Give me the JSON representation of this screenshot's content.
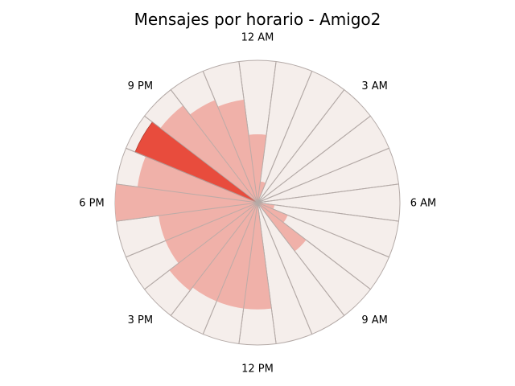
{
  "chart_data": {
    "type": "polar-bar",
    "title": "Mensajes por horario - Amigo2",
    "bins": [
      "12 AM",
      "1 AM",
      "2 AM",
      "3 AM",
      "4 AM",
      "5 AM",
      "6 AM",
      "7 AM",
      "8 AM",
      "9 AM",
      "10 AM",
      "11 AM",
      "12 PM",
      "1 PM",
      "2 PM",
      "3 PM",
      "4 PM",
      "5 PM",
      "6 PM",
      "7 PM",
      "8 PM",
      "9 PM",
      "10 PM",
      "11 PM"
    ],
    "tick_labels": [
      "12 AM",
      "3 AM",
      "6 AM",
      "9 AM",
      "12 PM",
      "3 PM",
      "6 PM",
      "9 PM"
    ],
    "values": [
      0.48,
      0.15,
      0.0,
      0.0,
      0.0,
      0.0,
      0.0,
      0.12,
      0.23,
      0.43,
      0.0,
      0.0,
      0.75,
      0.75,
      0.75,
      0.78,
      0.7,
      0.7,
      1.0,
      0.85,
      0.93,
      0.86,
      0.78,
      0.73
    ],
    "max_value": 1.0,
    "highlight_index": 20,
    "colors": {
      "background_wedge": "#f5eeeb",
      "bar": "#f0b1a9",
      "highlight": "#e84c3d",
      "edge": "#b4aaa7"
    }
  }
}
